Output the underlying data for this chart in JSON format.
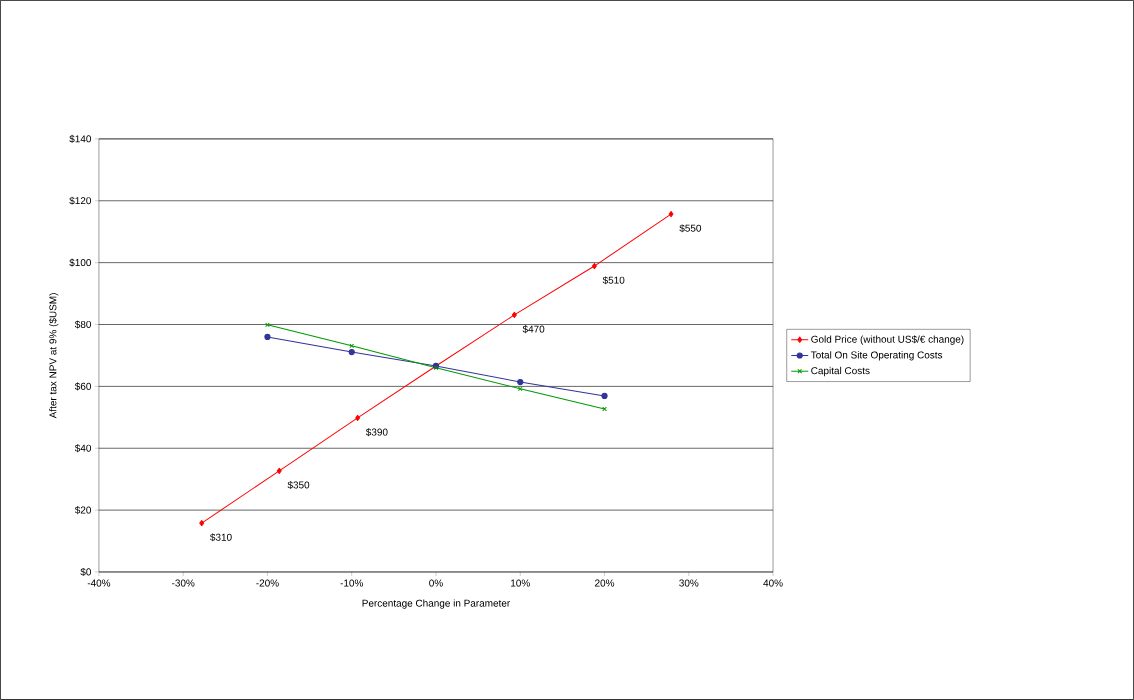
{
  "chart_data": {
    "type": "line",
    "xlabel": "Percentage Change in Parameter",
    "ylabel": "After tax NPV at 9%  ($USM)",
    "series": [
      {
        "name": "Gold Price (without US$/€ change)",
        "color": "#ff0000",
        "marker": "diamond",
        "x": [
          -27.8,
          -18.6,
          -9.3,
          0,
          9.3,
          18.8,
          27.9
        ],
        "values": [
          15.8,
          32.7,
          49.8,
          66.6,
          83.1,
          98.9,
          115.7
        ]
      },
      {
        "name": "Total On Site Operating Costs",
        "color": "#333399",
        "marker": "circle",
        "x": [
          -20,
          -10,
          0,
          10,
          20
        ],
        "values": [
          76.0,
          71.1,
          66.6,
          61.4,
          56.9
        ]
      },
      {
        "name": "Capital Costs",
        "color": "#009900",
        "marker": "cross",
        "x": [
          -20,
          -10,
          0,
          10,
          20
        ],
        "values": [
          79.9,
          73.1,
          66.0,
          59.2,
          52.7
        ]
      }
    ],
    "annotations": [
      {
        "text": "$310",
        "x": -27.8,
        "y": 15.8
      },
      {
        "text": "$350",
        "x": -18.6,
        "y": 32.7
      },
      {
        "text": "$390",
        "x": -9.3,
        "y": 49.8
      },
      {
        "text": "$470",
        "x": 9.3,
        "y": 83.1
      },
      {
        "text": "$510",
        "x": 18.8,
        "y": 98.9
      },
      {
        "text": "$550",
        "x": 27.9,
        "y": 115.7
      }
    ],
    "xlim": [
      -40,
      40
    ],
    "xticks": [
      {
        "value": -40,
        "label": "-40%"
      },
      {
        "value": -30,
        "label": "-30%"
      },
      {
        "value": -20,
        "label": "-20%"
      },
      {
        "value": -10,
        "label": "-10%"
      },
      {
        "value": 0,
        "label": "0%"
      },
      {
        "value": 10,
        "label": "10%"
      },
      {
        "value": 20,
        "label": "20%"
      },
      {
        "value": 30,
        "label": "30%"
      },
      {
        "value": 40,
        "label": "40%"
      }
    ],
    "ylim": [
      0,
      140
    ],
    "yticks": [
      {
        "value": 0,
        "label": "$0"
      },
      {
        "value": 20,
        "label": "$20"
      },
      {
        "value": 40,
        "label": "$40"
      },
      {
        "value": 60,
        "label": "$60"
      },
      {
        "value": 80,
        "label": "$80"
      },
      {
        "value": 100,
        "label": "$100"
      },
      {
        "value": 120,
        "label": "$120"
      },
      {
        "value": 140,
        "label": "$140"
      }
    ],
    "grid": "y",
    "legend": "right",
    "line_style": "solid"
  }
}
